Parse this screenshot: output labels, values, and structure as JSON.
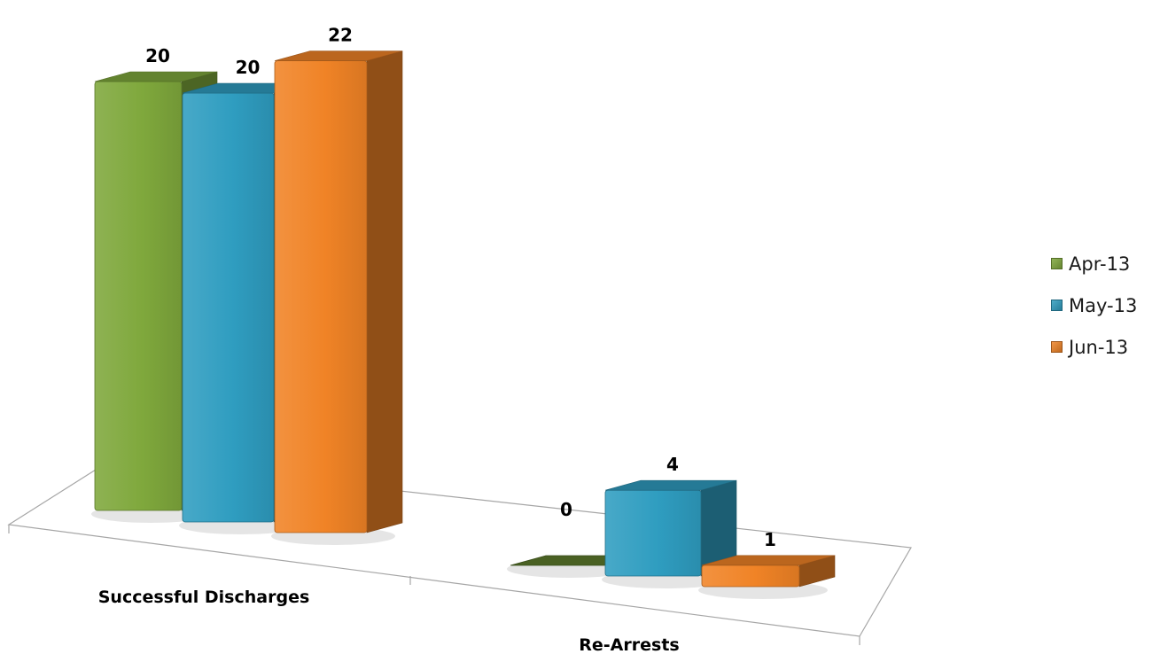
{
  "chart_data": {
    "type": "bar",
    "categories": [
      "Successful Discharges",
      "Re-Arrests"
    ],
    "series": [
      {
        "name": "Apr-13",
        "values": [
          20,
          0
        ]
      },
      {
        "name": "May-13",
        "values": [
          20,
          4
        ]
      },
      {
        "name": "Jun-13",
        "values": [
          22,
          1
        ]
      }
    ],
    "title": "",
    "xlabel": "",
    "ylabel": "",
    "ylim": [
      0,
      22
    ],
    "grid": false,
    "legend": "right",
    "style": "3d",
    "colors": [
      "#7fa83c",
      "#2f9dc0",
      "#f08326"
    ]
  }
}
